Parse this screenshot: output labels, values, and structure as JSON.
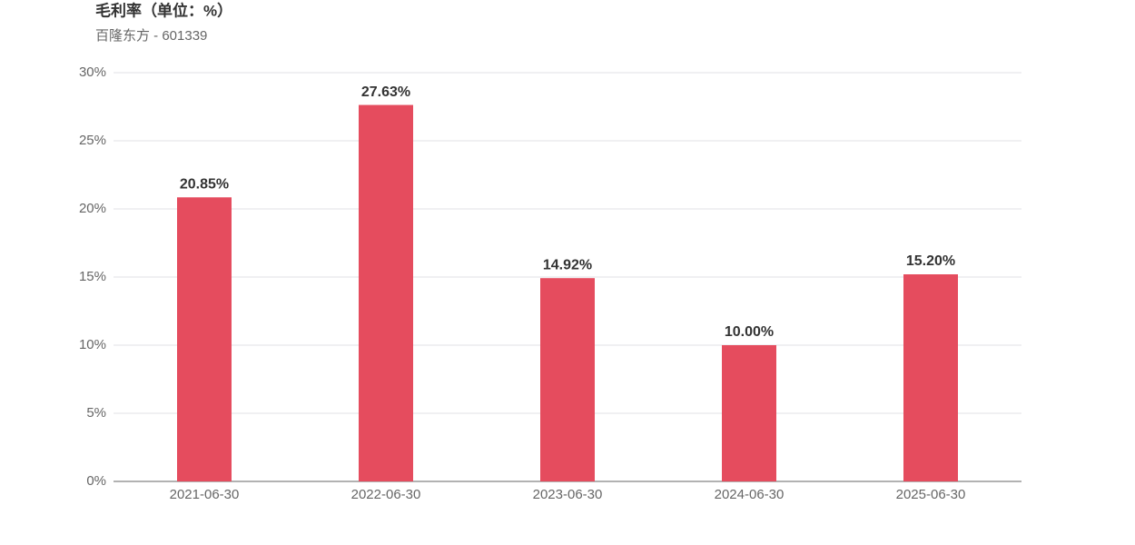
{
  "chart_data": {
    "type": "bar",
    "title": "毛利率（单位：%）",
    "subtitle": "百隆东方 - 601339",
    "categories": [
      "2021-06-30",
      "2022-06-30",
      "2023-06-30",
      "2024-06-30",
      "2025-06-30"
    ],
    "values": [
      20.85,
      27.63,
      14.92,
      10.0,
      15.2
    ],
    "value_labels": [
      "20.85%",
      "27.63%",
      "14.92%",
      "10.00%",
      "15.20%"
    ],
    "color": "#e54c5e",
    "ylim": [
      0,
      30
    ],
    "yticks": [
      {
        "value": 0,
        "label": "0%"
      },
      {
        "value": 5,
        "label": "5%"
      },
      {
        "value": 10,
        "label": "10%"
      },
      {
        "value": 15,
        "label": "15%"
      },
      {
        "value": 20,
        "label": "20%"
      },
      {
        "value": 25,
        "label": "25%"
      },
      {
        "value": 30,
        "label": "30%"
      }
    ],
    "grid": true
  }
}
